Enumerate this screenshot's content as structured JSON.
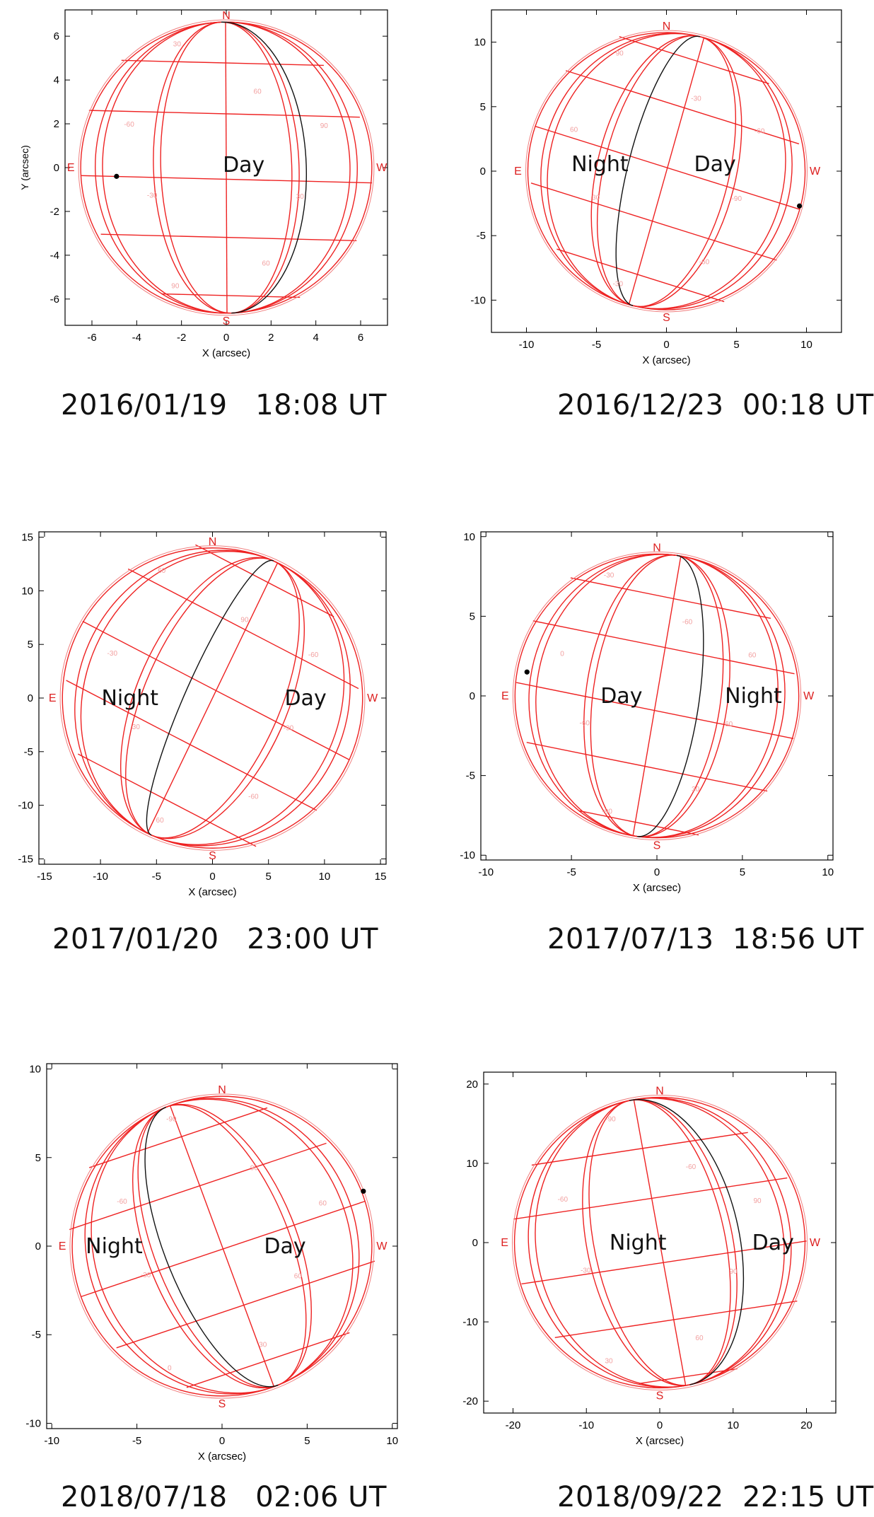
{
  "colors": {
    "grid": "#ee2222",
    "limb_light": "#f08080",
    "terminator": "#111111",
    "axis": "#000000",
    "label_red": "#dd2020",
    "faint_red": "#f2a0a0"
  },
  "panels": [
    {
      "caption": "2016/01/19   18:08 UT",
      "xlabel": "X (arcsec)",
      "ylabel": "Y (arcsec)",
      "xrange": [
        -7.2,
        7.2
      ],
      "yrange": [
        -7.2,
        7.2
      ],
      "xticks": [
        "-6",
        "-4",
        "-2",
        "0",
        "2",
        "4",
        "6"
      ],
      "yticks": [
        "-6",
        "-4",
        "-2",
        "0",
        "2",
        "4",
        "6"
      ],
      "radius": 6.5,
      "tilt": -2,
      "lat0": 0.1,
      "term_lat": 0,
      "compass": {
        "N": "N",
        "S": "S",
        "E": "E",
        "W": "W"
      },
      "regions": [
        "Day"
      ],
      "grid_labels": [
        "30",
        "60",
        "90",
        "-30",
        "-60",
        "30",
        "60",
        "90"
      ],
      "dot": [
        -4.9,
        -0.4
      ]
    },
    {
      "caption": "2016/12/23  00:18 UT",
      "xlabel": "X (arcsec)",
      "ylabel": "",
      "xrange": [
        -12.5,
        12.5
      ],
      "yrange": [
        -12.5,
        12.5
      ],
      "xticks": [
        "-10",
        "-5",
        "0",
        "5",
        "10"
      ],
      "yticks": [
        "-10",
        "-5",
        "0",
        "5",
        "10"
      ],
      "radius": 9.9,
      "tilt": 14,
      "lat0": -0.25,
      "term_lat": 0,
      "compass": {
        "N": "N",
        "S": "S",
        "E": "E",
        "W": "W"
      },
      "regions": [
        "Night",
        "Day"
      ],
      "grid_labels": [
        "-90",
        "-60",
        "-30",
        "30",
        "60",
        "90",
        "-30",
        "-60"
      ],
      "dot": [
        9.5,
        -2.7
      ]
    },
    {
      "caption": "2017/01/20   23:00 UT",
      "xlabel": "X (arcsec)",
      "ylabel": "",
      "xrange": [
        -15.5,
        15.5
      ],
      "yrange": [
        -15.5,
        15.5
      ],
      "xticks": [
        "-15",
        "-10",
        "-5",
        "0",
        "5",
        "10",
        "15"
      ],
      "yticks": [
        "-15",
        "-10",
        "-5",
        "0",
        "5",
        "10",
        "15"
      ],
      "radius": 13.4,
      "tilt": 24,
      "lat0": -0.35,
      "term_lat": 0,
      "compass": {
        "N": "N",
        "S": "S",
        "E": "E",
        "W": "W"
      },
      "regions": [
        "Night",
        "Day"
      ],
      "grid_labels": [
        "-90",
        "-60",
        "60",
        "30",
        "-30",
        "60",
        "90",
        "-60"
      ],
      "dot": null
    },
    {
      "caption": "2017/07/13  18:56 UT",
      "xlabel": "X (arcsec)",
      "ylabel": "",
      "xrange": [
        -10.3,
        10.3
      ],
      "yrange": [
        -10.3,
        10.3
      ],
      "xticks": [
        "-10",
        "-5",
        "0",
        "5",
        "10"
      ],
      "yticks": [
        "-10",
        "-5",
        "0",
        "5",
        "10"
      ],
      "radius": 8.3,
      "tilt": 8,
      "lat0": 0.18,
      "term_lat": 0,
      "compass": {
        "N": "N",
        "S": "S",
        "E": "E",
        "W": "W"
      },
      "regions": [
        "Day",
        "Night"
      ],
      "grid_labels": [
        "60",
        "30",
        "-90",
        "-60",
        "0",
        "-30",
        "-60",
        "60"
      ],
      "dot": [
        -7.6,
        1.5
      ]
    },
    {
      "caption": "2018/07/18   02:06 UT",
      "xlabel": "X (arcsec)",
      "ylabel": "",
      "xrange": [
        -10.3,
        10.3
      ],
      "yrange": [
        -10.3,
        10.3
      ],
      "xticks": [
        "-10",
        "-5",
        "0",
        "5",
        "10"
      ],
      "yticks": [
        "-10",
        "-5",
        "0",
        "5",
        "10"
      ],
      "radius": 8.8,
      "tilt": -22,
      "lat0": -0.1,
      "term_lat": 0,
      "compass": {
        "N": "N",
        "S": "S",
        "E": "E",
        "W": "W"
      },
      "regions": [
        "Night",
        "Day"
      ],
      "grid_labels": [
        "60",
        "30",
        "0",
        "-30",
        "-60",
        "-90",
        "90",
        "60"
      ],
      "dot": [
        8.3,
        3.1
      ]
    },
    {
      "caption": "2018/09/22  22:15 UT",
      "xlabel": "X (arcsec)",
      "ylabel": "",
      "xrange": [
        -24,
        24
      ],
      "yrange": [
        -21.5,
        21.5
      ],
      "xticks": [
        "-20",
        "-10",
        "0",
        "10",
        "20"
      ],
      "yticks": [
        "-20",
        "-10",
        "0",
        "10",
        "20"
      ],
      "radius": 19.8,
      "tilt": -12,
      "lat0": 0.3,
      "term_lat": 0,
      "compass": {
        "N": "N",
        "S": "S",
        "E": "E",
        "W": "W"
      },
      "regions": [
        "Night",
        "Day"
      ],
      "grid_labels": [
        "90",
        "60",
        "30",
        "-30",
        "-60",
        "-90",
        "-60",
        "90"
      ],
      "dot": null
    }
  ]
}
